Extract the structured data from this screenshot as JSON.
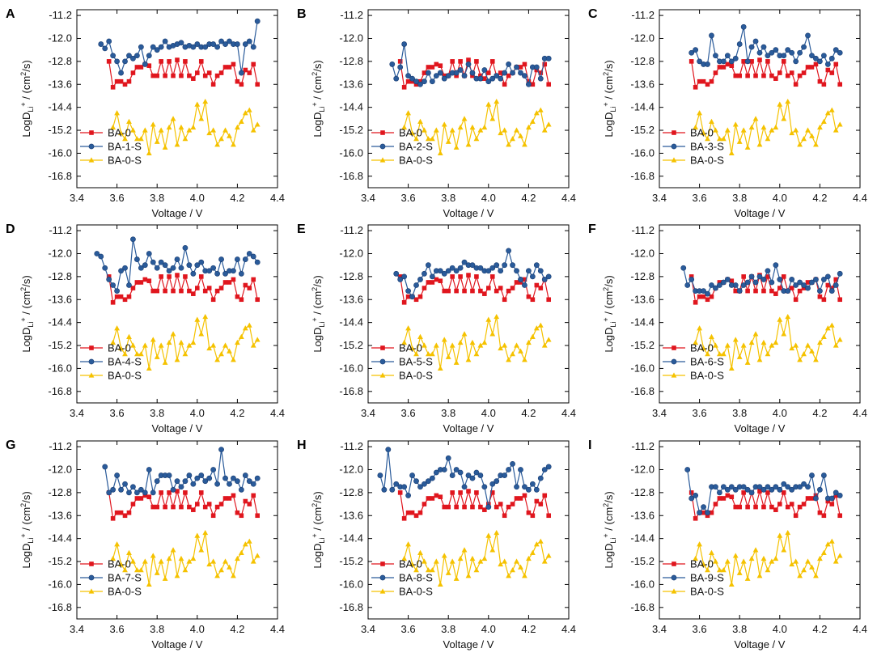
{
  "colors": {
    "BA-0": "#e0161e",
    "sample": "#2a5b9a",
    "BA-0-S": "#f5c200"
  },
  "axis": {
    "xlabel": "Voltage / V",
    "ylabel_prefix": "LogD",
    "ylabel_sub": "Li",
    "ylabel_sup": "+",
    "ylabel_mid": " / (cm",
    "ylabel_sup2": "2",
    "ylabel_suffix": "/s)"
  },
  "chart_data": {
    "type": "line",
    "xlim": [
      3.4,
      4.4
    ],
    "ylim": [
      -17.2,
      -11.0
    ],
    "xticks": [
      "3.4",
      "3.6",
      "3.8",
      "4.0",
      "4.2",
      "4.4"
    ],
    "yticks": [
      "-11.2",
      "-12.0",
      "-12.8",
      "-13.6",
      "-14.4",
      "-15.2",
      "-16.0",
      "-16.8"
    ],
    "shared_series": {
      "BA-0": {
        "name": "BA-0",
        "x": [
          3.56,
          3.58,
          3.6,
          3.62,
          3.64,
          3.66,
          3.68,
          3.7,
          3.72,
          3.74,
          3.76,
          3.78,
          3.8,
          3.82,
          3.84,
          3.86,
          3.88,
          3.9,
          3.92,
          3.94,
          3.96,
          3.98,
          4.0,
          4.02,
          4.04,
          4.06,
          4.08,
          4.1,
          4.12,
          4.14,
          4.16,
          4.18,
          4.2,
          4.22,
          4.24,
          4.26,
          4.28,
          4.3
        ],
        "y": [
          -12.8,
          -13.7,
          -13.5,
          -13.5,
          -13.6,
          -13.5,
          -13.2,
          -13.0,
          -13.0,
          -12.9,
          -12.95,
          -13.3,
          -13.3,
          -12.8,
          -13.3,
          -12.8,
          -13.3,
          -12.75,
          -13.3,
          -12.8,
          -13.3,
          -13.4,
          -13.2,
          -12.8,
          -13.3,
          -13.2,
          -13.6,
          -13.3,
          -13.2,
          -13.0,
          -13.0,
          -12.9,
          -13.5,
          -13.6,
          -13.1,
          -13.2,
          -12.9,
          -13.6
        ]
      },
      "BA-0-S": {
        "name": "BA-0-S",
        "x": [
          3.58,
          3.6,
          3.62,
          3.64,
          3.66,
          3.68,
          3.7,
          3.72,
          3.74,
          3.76,
          3.78,
          3.8,
          3.82,
          3.84,
          3.86,
          3.88,
          3.9,
          3.92,
          3.94,
          3.96,
          3.98,
          4.0,
          4.02,
          4.04,
          4.06,
          4.08,
          4.1,
          4.12,
          4.14,
          4.16,
          4.18,
          4.2,
          4.22,
          4.24,
          4.26,
          4.28,
          4.3
        ],
        "y": [
          -15.1,
          -14.6,
          -15.3,
          -15.5,
          -14.9,
          -15.2,
          -15.5,
          -15.5,
          -15.2,
          -16.0,
          -15.0,
          -15.6,
          -15.2,
          -15.8,
          -15.1,
          -14.8,
          -15.7,
          -15.1,
          -15.5,
          -15.2,
          -15.1,
          -14.3,
          -14.8,
          -14.2,
          -15.3,
          -15.2,
          -15.7,
          -15.5,
          -15.2,
          -15.4,
          -15.7,
          -15.1,
          -14.9,
          -14.6,
          -14.5,
          -15.2,
          -15.0
        ]
      }
    },
    "panels": [
      {
        "letter": "A",
        "sample": {
          "name": "BA-1-S",
          "x": [
            3.52,
            3.54,
            3.56,
            3.58,
            3.6,
            3.62,
            3.64,
            3.66,
            3.68,
            3.7,
            3.72,
            3.74,
            3.76,
            3.78,
            3.8,
            3.82,
            3.84,
            3.86,
            3.88,
            3.9,
            3.92,
            3.94,
            3.96,
            3.98,
            4.0,
            4.02,
            4.04,
            4.06,
            4.08,
            4.1,
            4.12,
            4.14,
            4.16,
            4.18,
            4.2,
            4.22,
            4.24,
            4.26,
            4.28,
            4.3
          ],
          "y": [
            -12.2,
            -12.35,
            -12.1,
            -12.6,
            -12.8,
            -13.2,
            -12.8,
            -12.6,
            -12.7,
            -12.6,
            -12.3,
            -12.9,
            -12.6,
            -12.3,
            -12.4,
            -12.3,
            -12.1,
            -12.3,
            -12.25,
            -12.2,
            -12.15,
            -12.3,
            -12.25,
            -12.3,
            -12.2,
            -12.3,
            -12.3,
            -12.2,
            -12.2,
            -12.3,
            -12.1,
            -12.2,
            -12.1,
            -12.2,
            -12.2,
            -13.2,
            -12.2,
            -12.1,
            -12.3,
            -11.4
          ]
        }
      },
      {
        "letter": "B",
        "sample": {
          "name": "BA-2-S",
          "x": [
            3.52,
            3.54,
            3.56,
            3.58,
            3.6,
            3.62,
            3.64,
            3.66,
            3.68,
            3.7,
            3.72,
            3.74,
            3.76,
            3.78,
            3.8,
            3.82,
            3.84,
            3.86,
            3.88,
            3.9,
            3.92,
            3.94,
            3.96,
            3.98,
            4.0,
            4.02,
            4.04,
            4.06,
            4.08,
            4.1,
            4.12,
            4.14,
            4.16,
            4.18,
            4.2,
            4.22,
            4.24,
            4.26,
            4.28,
            4.3
          ],
          "y": [
            -12.9,
            -13.4,
            -13.0,
            -12.2,
            -13.3,
            -13.4,
            -13.5,
            -13.6,
            -13.5,
            -13.2,
            -13.5,
            -13.3,
            -13.2,
            -13.4,
            -13.3,
            -13.2,
            -13.2,
            -13.1,
            -13.3,
            -12.9,
            -13.2,
            -13.4,
            -13.4,
            -13.1,
            -13.5,
            -13.4,
            -13.3,
            -13.4,
            -13.2,
            -12.9,
            -13.2,
            -13.0,
            -13.2,
            -13.3,
            -13.6,
            -13.0,
            -13.0,
            -13.4,
            -12.7,
            -12.7
          ]
        }
      },
      {
        "letter": "C",
        "sample": {
          "name": "BA-3-S",
          "x": [
            3.56,
            3.58,
            3.6,
            3.62,
            3.64,
            3.66,
            3.68,
            3.7,
            3.72,
            3.74,
            3.76,
            3.78,
            3.8,
            3.82,
            3.84,
            3.86,
            3.88,
            3.9,
            3.92,
            3.94,
            3.96,
            3.98,
            4.0,
            4.02,
            4.04,
            4.06,
            4.08,
            4.1,
            4.12,
            4.14,
            4.16,
            4.18,
            4.2,
            4.22,
            4.24,
            4.26,
            4.28,
            4.3
          ],
          "y": [
            -12.5,
            -12.4,
            -12.8,
            -12.9,
            -12.9,
            -11.9,
            -12.6,
            -12.8,
            -12.8,
            -12.6,
            -12.8,
            -12.7,
            -12.2,
            -11.6,
            -12.8,
            -12.3,
            -12.1,
            -12.5,
            -12.3,
            -12.6,
            -12.5,
            -12.4,
            -12.6,
            -12.6,
            -12.4,
            -12.5,
            -12.8,
            -12.5,
            -12.3,
            -11.9,
            -12.6,
            -12.7,
            -12.8,
            -12.6,
            -12.9,
            -12.7,
            -12.4,
            -12.5
          ]
        }
      },
      {
        "letter": "D",
        "sample": {
          "name": "BA-4-S",
          "x": [
            3.5,
            3.52,
            3.54,
            3.56,
            3.58,
            3.6,
            3.62,
            3.64,
            3.66,
            3.68,
            3.7,
            3.72,
            3.74,
            3.76,
            3.78,
            3.8,
            3.82,
            3.84,
            3.86,
            3.88,
            3.9,
            3.92,
            3.94,
            3.96,
            3.98,
            4.0,
            4.02,
            4.04,
            4.06,
            4.08,
            4.1,
            4.12,
            4.14,
            4.16,
            4.18,
            4.2,
            4.22,
            4.24,
            4.26,
            4.28,
            4.3
          ],
          "y": [
            -12.0,
            -12.1,
            -12.5,
            -12.9,
            -13.1,
            -13.3,
            -12.6,
            -12.5,
            -13.1,
            -11.5,
            -12.2,
            -12.5,
            -12.4,
            -12.0,
            -12.3,
            -12.5,
            -12.3,
            -12.4,
            -12.6,
            -12.5,
            -12.2,
            -12.5,
            -11.8,
            -12.4,
            -12.7,
            -12.4,
            -12.3,
            -12.6,
            -12.6,
            -12.5,
            -12.7,
            -12.2,
            -12.7,
            -12.6,
            -12.6,
            -12.2,
            -12.7,
            -12.2,
            -12.0,
            -12.1,
            -12.3
          ]
        }
      },
      {
        "letter": "E",
        "sample": {
          "name": "BA-5-S",
          "x": [
            3.54,
            3.56,
            3.58,
            3.6,
            3.62,
            3.64,
            3.66,
            3.68,
            3.7,
            3.72,
            3.74,
            3.76,
            3.78,
            3.8,
            3.82,
            3.84,
            3.86,
            3.88,
            3.9,
            3.92,
            3.94,
            3.96,
            3.98,
            4.0,
            4.02,
            4.04,
            4.06,
            4.08,
            4.1,
            4.12,
            4.14,
            4.16,
            4.18,
            4.2,
            4.22,
            4.24,
            4.26,
            4.28,
            4.3
          ],
          "y": [
            -12.7,
            -12.9,
            -12.8,
            -13.3,
            -13.5,
            -13.1,
            -12.9,
            -12.7,
            -12.4,
            -12.8,
            -12.6,
            -12.6,
            -12.7,
            -12.6,
            -12.5,
            -12.6,
            -12.5,
            -12.3,
            -12.4,
            -12.4,
            -12.5,
            -12.5,
            -12.6,
            -12.6,
            -12.5,
            -12.4,
            -12.6,
            -12.4,
            -11.9,
            -12.4,
            -12.6,
            -12.9,
            -13.1,
            -12.6,
            -12.8,
            -12.4,
            -12.6,
            -12.9,
            -12.8
          ]
        }
      },
      {
        "letter": "F",
        "sample": {
          "name": "BA-6-S",
          "x": [
            3.52,
            3.54,
            3.56,
            3.58,
            3.6,
            3.62,
            3.64,
            3.66,
            3.68,
            3.7,
            3.72,
            3.74,
            3.76,
            3.78,
            3.8,
            3.82,
            3.84,
            3.86,
            3.88,
            3.9,
            3.92,
            3.94,
            3.96,
            3.98,
            4.0,
            4.02,
            4.04,
            4.06,
            4.08,
            4.1,
            4.12,
            4.14,
            4.16,
            4.18,
            4.2,
            4.22,
            4.24,
            4.26,
            4.28,
            4.3
          ],
          "y": [
            -12.5,
            -13.1,
            -12.9,
            -13.3,
            -13.3,
            -13.3,
            -13.4,
            -13.1,
            -13.2,
            -13.1,
            -13.0,
            -12.9,
            -13.1,
            -13.1,
            -13.3,
            -13.1,
            -13.0,
            -12.8,
            -13.0,
            -12.8,
            -12.9,
            -12.6,
            -13.0,
            -12.4,
            -12.9,
            -13.3,
            -13.3,
            -12.9,
            -13.1,
            -13.0,
            -13.1,
            -13.2,
            -13.0,
            -12.9,
            -13.3,
            -12.9,
            -12.8,
            -13.3,
            -13.1,
            -12.7
          ]
        }
      },
      {
        "letter": "G",
        "sample": {
          "name": "BA-7-S",
          "x": [
            3.54,
            3.56,
            3.58,
            3.6,
            3.62,
            3.64,
            3.66,
            3.68,
            3.7,
            3.72,
            3.74,
            3.76,
            3.78,
            3.8,
            3.82,
            3.84,
            3.86,
            3.88,
            3.9,
            3.92,
            3.94,
            3.96,
            3.98,
            4.0,
            4.02,
            4.04,
            4.06,
            4.08,
            4.1,
            4.12,
            4.14,
            4.16,
            4.18,
            4.2,
            4.22,
            4.24,
            4.26,
            4.28,
            4.3
          ],
          "y": [
            -11.9,
            -12.8,
            -12.7,
            -12.2,
            -12.7,
            -12.5,
            -12.8,
            -12.6,
            -12.8,
            -12.7,
            -12.8,
            -12.0,
            -12.8,
            -12.4,
            -12.2,
            -12.2,
            -12.2,
            -12.7,
            -12.4,
            -12.6,
            -12.4,
            -12.2,
            -12.5,
            -12.3,
            -12.2,
            -12.4,
            -12.3,
            -12.0,
            -12.5,
            -11.3,
            -12.3,
            -12.5,
            -12.3,
            -12.4,
            -12.7,
            -12.2,
            -12.4,
            -12.5,
            -12.3
          ]
        }
      },
      {
        "letter": "H",
        "sample": {
          "name": "BA-8-S",
          "x": [
            3.46,
            3.48,
            3.5,
            3.52,
            3.54,
            3.56,
            3.58,
            3.6,
            3.62,
            3.64,
            3.66,
            3.68,
            3.7,
            3.72,
            3.74,
            3.76,
            3.78,
            3.8,
            3.82,
            3.84,
            3.86,
            3.88,
            3.9,
            3.92,
            3.94,
            3.96,
            3.98,
            4.0,
            4.02,
            4.04,
            4.06,
            4.08,
            4.1,
            4.12,
            4.14,
            4.16,
            4.18,
            4.2,
            4.22,
            4.24,
            4.26,
            4.28,
            4.3
          ],
          "y": [
            -12.2,
            -12.7,
            -11.3,
            -12.7,
            -12.5,
            -12.6,
            -12.6,
            -12.9,
            -12.2,
            -12.4,
            -12.6,
            -12.5,
            -12.4,
            -12.3,
            -12.1,
            -12.0,
            -12.0,
            -11.6,
            -12.2,
            -12.0,
            -12.1,
            -12.6,
            -12.2,
            -12.3,
            -12.1,
            -12.2,
            -12.6,
            -13.3,
            -12.5,
            -12.4,
            -12.2,
            -12.2,
            -12.0,
            -11.8,
            -12.6,
            -12.0,
            -12.6,
            -12.7,
            -12.5,
            -12.7,
            -12.3,
            -12.0,
            -11.9
          ]
        }
      },
      {
        "letter": "I",
        "sample": {
          "name": "BA-9-S",
          "x": [
            3.54,
            3.56,
            3.58,
            3.6,
            3.62,
            3.64,
            3.66,
            3.68,
            3.7,
            3.72,
            3.74,
            3.76,
            3.78,
            3.8,
            3.82,
            3.84,
            3.86,
            3.88,
            3.9,
            3.92,
            3.94,
            3.96,
            3.98,
            4.0,
            4.02,
            4.04,
            4.06,
            4.08,
            4.1,
            4.12,
            4.14,
            4.16,
            4.18,
            4.2,
            4.22,
            4.24,
            4.26,
            4.28,
            4.3
          ],
          "y": [
            -12.0,
            -13.0,
            -12.9,
            -13.5,
            -13.3,
            -13.5,
            -12.6,
            -12.6,
            -12.8,
            -12.6,
            -12.7,
            -12.6,
            -12.7,
            -12.6,
            -12.6,
            -12.7,
            -12.8,
            -12.6,
            -12.6,
            -12.7,
            -12.6,
            -12.7,
            -12.6,
            -12.7,
            -12.5,
            -12.6,
            -12.7,
            -12.6,
            -12.6,
            -12.5,
            -12.6,
            -12.2,
            -13.0,
            -12.7,
            -12.2,
            -13.0,
            -13.0,
            -12.8,
            -12.9
          ]
        }
      }
    ]
  }
}
